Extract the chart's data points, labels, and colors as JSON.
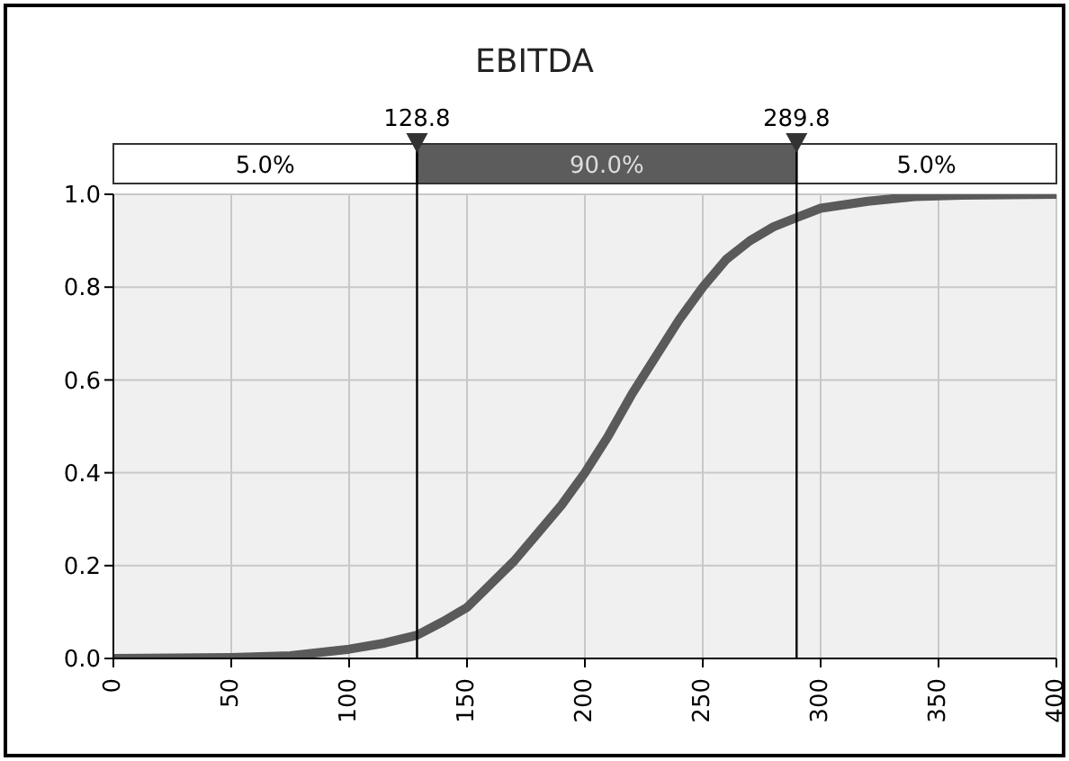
{
  "chart_data": {
    "type": "line",
    "title": "EBITDA",
    "x": [
      0,
      50,
      75,
      100,
      115,
      128.8,
      140,
      150,
      160,
      170,
      180,
      190,
      200,
      210,
      220,
      230,
      240,
      250,
      260,
      270,
      280,
      289.8,
      300,
      320,
      340,
      360,
      400
    ],
    "series": [
      {
        "color": "#5a5a5a",
        "values": [
          0,
          0.002,
          0.006,
          0.02,
          0.033,
          0.05,
          0.08,
          0.11,
          0.16,
          0.21,
          0.27,
          0.33,
          0.4,
          0.48,
          0.57,
          0.65,
          0.73,
          0.8,
          0.86,
          0.9,
          0.93,
          0.95,
          0.97,
          0.985,
          0.995,
          0.998,
          1.0
        ]
      }
    ],
    "xlim": [
      0,
      400
    ],
    "xticks": [
      0,
      50,
      100,
      150,
      200,
      250,
      300,
      350,
      400
    ],
    "ylim": [
      0,
      1
    ],
    "yticks": [
      {
        "value": 0,
        "label": "0.0"
      },
      {
        "value": 0.2,
        "label": "0.2"
      },
      {
        "value": 0.4,
        "label": "0.4"
      },
      {
        "value": 0.6,
        "label": "0.6"
      },
      {
        "value": 0.8,
        "label": "0.8"
      },
      {
        "value": 1,
        "label": "1.0"
      }
    ],
    "grid": true,
    "ref_lines": [
      {
        "axis": "x",
        "value": 128.8,
        "label": "128.8",
        "color": "#000000"
      },
      {
        "axis": "x",
        "value": 289.8,
        "label": "289.8",
        "color": "#000000"
      }
    ],
    "annotations": [
      "5.0%",
      "90.0%",
      "5.0%"
    ]
  }
}
